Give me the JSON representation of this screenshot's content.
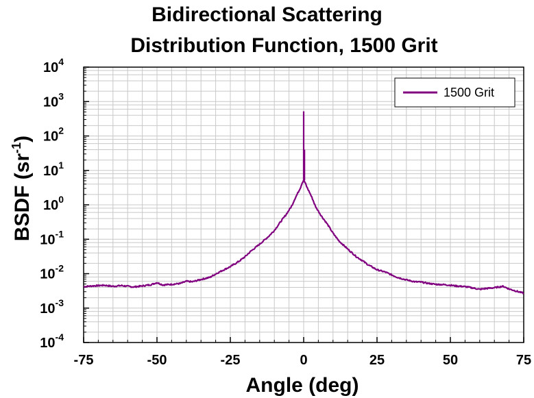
{
  "chart_data": {
    "type": "line",
    "title_line1": "Bidirectional Scattering",
    "title_line2": "Distribution Function, 1500 Grit",
    "xlabel": "Angle (deg)",
    "ylabel": "BSDF (sr",
    "ylabel_sup": "-1",
    "ylabel_close": ")",
    "xlim": [
      -75,
      75
    ],
    "ylim": [
      0.0001,
      10000
    ],
    "yscale": "log",
    "grid": true,
    "legend_position": "top-right",
    "x_ticks": [
      "-75",
      "-50",
      "-25",
      "0",
      "25",
      "50",
      "75"
    ],
    "y_ticks": [
      {
        "base": "10",
        "exp": "-4"
      },
      {
        "base": "10",
        "exp": "-3"
      },
      {
        "base": "10",
        "exp": "-2"
      },
      {
        "base": "10",
        "exp": "-1"
      },
      {
        "base": "10",
        "exp": "0"
      },
      {
        "base": "10",
        "exp": "1"
      },
      {
        "base": "10",
        "exp": "2"
      },
      {
        "base": "10",
        "exp": "3"
      },
      {
        "base": "10",
        "exp": "4"
      }
    ],
    "series": [
      {
        "name": "1500 Grit",
        "color": "#800080",
        "x": [
          -75,
          -72,
          -68,
          -65,
          -62,
          -58,
          -55,
          -52,
          -50,
          -48,
          -45,
          -42,
          -40,
          -38,
          -35,
          -32,
          -30,
          -28,
          -25,
          -22,
          -20,
          -18,
          -15,
          -12,
          -10,
          -8,
          -6,
          -4,
          -3,
          -2,
          -1,
          -0.5,
          0,
          0.5,
          1,
          2,
          3,
          4,
          6,
          8,
          10,
          12,
          15,
          18,
          20,
          22,
          25,
          28,
          30,
          32,
          35,
          38,
          40,
          42,
          45,
          48,
          50,
          52,
          55,
          58,
          60,
          62,
          65,
          68,
          70,
          72,
          75
        ],
        "y": [
          0.0042,
          0.0044,
          0.0046,
          0.0043,
          0.0045,
          0.0041,
          0.0044,
          0.0048,
          0.0055,
          0.0047,
          0.0049,
          0.0052,
          0.006,
          0.0058,
          0.0068,
          0.0078,
          0.0098,
          0.012,
          0.016,
          0.023,
          0.031,
          0.045,
          0.072,
          0.12,
          0.18,
          0.31,
          0.52,
          0.95,
          1.5,
          2.2,
          3.3,
          4.4,
          5.2,
          4.4,
          3.4,
          2.3,
          1.5,
          0.9,
          0.48,
          0.28,
          0.15,
          0.09,
          0.052,
          0.031,
          0.024,
          0.018,
          0.013,
          0.011,
          0.0092,
          0.0078,
          0.0066,
          0.0058,
          0.0057,
          0.0053,
          0.0049,
          0.0048,
          0.0046,
          0.0044,
          0.0042,
          0.0038,
          0.0035,
          0.0037,
          0.0039,
          0.0043,
          0.0036,
          0.0032,
          0.0027
        ]
      }
    ],
    "specular_peak": {
      "x": 0,
      "y": 520
    }
  }
}
